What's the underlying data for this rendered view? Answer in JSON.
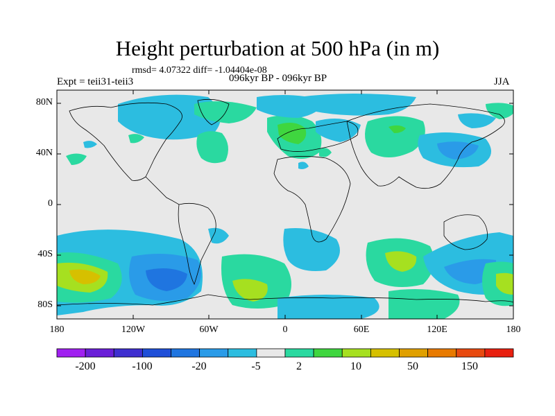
{
  "header": {
    "title": "Height perturbation at 500 hPa (in m)",
    "stats": "rmsd= 4.07322 diff= -1.04404e-08",
    "experiment": "Expt = teii31-teii3",
    "period": "096kyr BP - 096kyr BP",
    "season": "JJA"
  },
  "axes": {
    "y_ticks": [
      "80N",
      "40N",
      "0",
      "40S",
      "80S"
    ],
    "x_ticks": [
      "180",
      "120W",
      "60W",
      "0",
      "60E",
      "120E",
      "180"
    ]
  },
  "colorbar": {
    "labels": [
      "-200",
      "-100",
      "-20",
      "-5",
      "2",
      "10",
      "50",
      "150"
    ],
    "colors": [
      "#a020f0",
      "#6a1fd8",
      "#3f2fd0",
      "#1f4fd8",
      "#1f75e0",
      "#2a9be8",
      "#2cbde0",
      "#e8e8e8",
      "#2ad9a0",
      "#3fd63f",
      "#a6e020",
      "#d6c000",
      "#e0a000",
      "#e87a00",
      "#e84a10",
      "#e82010"
    ]
  },
  "map": {
    "background_color": "#e8e8e8",
    "projection": "cylindrical equidistant",
    "lon_range": [
      -180,
      180
    ],
    "lat_range": [
      -90,
      90
    ]
  }
}
